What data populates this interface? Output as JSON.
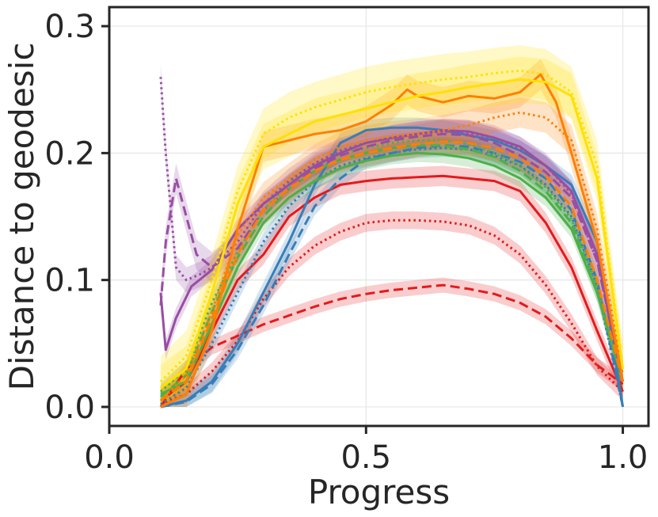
{
  "chart_data": {
    "type": "line",
    "title": "",
    "xlabel": "Progress",
    "ylabel": "Distance to geodesic",
    "xlim": [
      0.0,
      1.05
    ],
    "ylim": [
      -0.015,
      0.315
    ],
    "xticks": [
      {
        "value": 0.0,
        "label": "0.0"
      },
      {
        "value": 0.5,
        "label": "0.5"
      },
      {
        "value": 1.0,
        "label": "1.0"
      }
    ],
    "yticks": [
      {
        "value": 0.0,
        "label": "0.0"
      },
      {
        "value": 0.1,
        "label": "0.1"
      },
      {
        "value": 0.2,
        "label": "0.2"
      },
      {
        "value": 0.3,
        "label": "0.3"
      }
    ],
    "grid": true,
    "series": [
      {
        "name": "red-dashed",
        "color": "#e41a1c",
        "dash": "dashed",
        "band": 0.006,
        "x": [
          0.1,
          0.15,
          0.2,
          0.25,
          0.3,
          0.35,
          0.4,
          0.45,
          0.5,
          0.55,
          0.6,
          0.65,
          0.7,
          0.75,
          0.8,
          0.85,
          0.9,
          0.95,
          1.0
        ],
        "y": [
          0.0,
          0.03,
          0.047,
          0.056,
          0.065,
          0.072,
          0.079,
          0.085,
          0.089,
          0.092,
          0.094,
          0.096,
          0.093,
          0.089,
          0.082,
          0.071,
          0.054,
          0.033,
          0.018
        ]
      },
      {
        "name": "red-dotted",
        "color": "#e41a1c",
        "dash": "dotted",
        "band": 0.007,
        "x": [
          0.1,
          0.15,
          0.2,
          0.25,
          0.3,
          0.35,
          0.4,
          0.45,
          0.5,
          0.55,
          0.6,
          0.65,
          0.7,
          0.75,
          0.8,
          0.85,
          0.9,
          0.95,
          1.0
        ],
        "y": [
          0.002,
          0.01,
          0.028,
          0.052,
          0.085,
          0.11,
          0.127,
          0.138,
          0.145,
          0.147,
          0.147,
          0.146,
          0.143,
          0.135,
          0.12,
          0.096,
          0.066,
          0.032,
          0.012
        ]
      },
      {
        "name": "red-solid",
        "color": "#e41a1c",
        "dash": "solid",
        "band": 0.008,
        "x": [
          0.1,
          0.15,
          0.2,
          0.25,
          0.3,
          0.35,
          0.4,
          0.45,
          0.5,
          0.55,
          0.6,
          0.65,
          0.7,
          0.75,
          0.8,
          0.85,
          0.9,
          0.95,
          1.0
        ],
        "y": [
          0.005,
          0.02,
          0.06,
          0.1,
          0.12,
          0.15,
          0.165,
          0.175,
          0.178,
          0.18,
          0.181,
          0.182,
          0.18,
          0.178,
          0.17,
          0.145,
          0.11,
          0.06,
          0.012
        ]
      },
      {
        "name": "blue-solid",
        "color": "#377eb8",
        "dash": "solid",
        "band": 0.008,
        "x": [
          0.1,
          0.15,
          0.2,
          0.25,
          0.3,
          0.35,
          0.4,
          0.45,
          0.5,
          0.55,
          0.6,
          0.65,
          0.7,
          0.75,
          0.8,
          0.85,
          0.9,
          0.95,
          1.0
        ],
        "y": [
          0.0,
          0.005,
          0.02,
          0.05,
          0.09,
          0.13,
          0.175,
          0.208,
          0.218,
          0.22,
          0.22,
          0.218,
          0.214,
          0.21,
          0.202,
          0.19,
          0.175,
          0.13,
          0.0
        ]
      },
      {
        "name": "blue-dashed",
        "color": "#377eb8",
        "dash": "dashed",
        "band": 0.007,
        "x": [
          0.1,
          0.15,
          0.2,
          0.25,
          0.3,
          0.35,
          0.4,
          0.45,
          0.5,
          0.55,
          0.6,
          0.65,
          0.7,
          0.75,
          0.8,
          0.85,
          0.9,
          0.95,
          1.0
        ],
        "y": [
          0.0,
          0.004,
          0.018,
          0.045,
          0.08,
          0.12,
          0.158,
          0.18,
          0.195,
          0.2,
          0.204,
          0.206,
          0.205,
          0.2,
          0.193,
          0.18,
          0.155,
          0.1,
          0.0
        ]
      },
      {
        "name": "blue-dotted",
        "color": "#377eb8",
        "dash": "dotted",
        "band": 0.007,
        "x": [
          0.1,
          0.15,
          0.2,
          0.25,
          0.3,
          0.35,
          0.4,
          0.45,
          0.5,
          0.55,
          0.6,
          0.65,
          0.7,
          0.75,
          0.8,
          0.85,
          0.9,
          0.95,
          1.0
        ],
        "y": [
          0.002,
          0.015,
          0.05,
          0.09,
          0.13,
          0.158,
          0.178,
          0.19,
          0.196,
          0.2,
          0.203,
          0.204,
          0.203,
          0.198,
          0.19,
          0.175,
          0.15,
          0.095,
          0.0
        ]
      },
      {
        "name": "green-solid",
        "color": "#4daf4a",
        "dash": "solid",
        "band": 0.007,
        "x": [
          0.1,
          0.15,
          0.2,
          0.25,
          0.3,
          0.35,
          0.4,
          0.45,
          0.5,
          0.55,
          0.6,
          0.65,
          0.7,
          0.75,
          0.8,
          0.85,
          0.9,
          0.95,
          1.0
        ],
        "y": [
          0.01,
          0.02,
          0.065,
          0.11,
          0.145,
          0.165,
          0.178,
          0.188,
          0.194,
          0.198,
          0.2,
          0.199,
          0.196,
          0.19,
          0.18,
          0.165,
          0.14,
          0.09,
          0.02
        ]
      },
      {
        "name": "green-dashed",
        "color": "#4daf4a",
        "dash": "dashed",
        "band": 0.007,
        "x": [
          0.1,
          0.15,
          0.2,
          0.25,
          0.3,
          0.35,
          0.4,
          0.45,
          0.5,
          0.55,
          0.6,
          0.65,
          0.7,
          0.75,
          0.8,
          0.85,
          0.9,
          0.95,
          1.0
        ],
        "y": [
          0.008,
          0.025,
          0.075,
          0.118,
          0.15,
          0.172,
          0.186,
          0.195,
          0.2,
          0.204,
          0.206,
          0.206,
          0.203,
          0.197,
          0.186,
          0.17,
          0.145,
          0.09,
          0.02
        ]
      },
      {
        "name": "green-dotted",
        "color": "#4daf4a",
        "dash": "dotted",
        "band": 0.007,
        "x": [
          0.1,
          0.15,
          0.2,
          0.25,
          0.3,
          0.35,
          0.4,
          0.45,
          0.5,
          0.55,
          0.6,
          0.65,
          0.7,
          0.75,
          0.8,
          0.85,
          0.9,
          0.95,
          1.0
        ],
        "y": [
          0.012,
          0.03,
          0.082,
          0.122,
          0.155,
          0.176,
          0.19,
          0.199,
          0.204,
          0.208,
          0.21,
          0.21,
          0.207,
          0.2,
          0.19,
          0.173,
          0.148,
          0.095,
          0.022
        ]
      },
      {
        "name": "purple-solid",
        "color": "#984ea3",
        "dash": "solid",
        "band": 0.008,
        "x": [
          0.1,
          0.11,
          0.13,
          0.16,
          0.2,
          0.25,
          0.3,
          0.35,
          0.4,
          0.45,
          0.5,
          0.55,
          0.6,
          0.65,
          0.7,
          0.75,
          0.8,
          0.85,
          0.9,
          0.95,
          1.0
        ],
        "y": [
          0.09,
          0.045,
          0.07,
          0.095,
          0.108,
          0.14,
          0.16,
          0.175,
          0.19,
          0.2,
          0.208,
          0.212,
          0.215,
          0.218,
          0.217,
          0.212,
          0.205,
          0.19,
          0.17,
          0.12,
          0.02
        ]
      },
      {
        "name": "purple-dashed",
        "color": "#984ea3",
        "dash": "dashed",
        "band": 0.012,
        "x": [
          0.1,
          0.11,
          0.13,
          0.15,
          0.17,
          0.2,
          0.25,
          0.3,
          0.35,
          0.4,
          0.45,
          0.5,
          0.55,
          0.6,
          0.65,
          0.7,
          0.75,
          0.8,
          0.85,
          0.9,
          0.95,
          1.0
        ],
        "y": [
          0.08,
          0.13,
          0.18,
          0.15,
          0.12,
          0.11,
          0.125,
          0.155,
          0.172,
          0.188,
          0.198,
          0.205,
          0.21,
          0.213,
          0.215,
          0.214,
          0.208,
          0.198,
          0.185,
          0.165,
          0.115,
          0.02
        ]
      },
      {
        "name": "purple-dotted",
        "color": "#984ea3",
        "dash": "dotted",
        "band": 0.01,
        "x": [
          0.1,
          0.11,
          0.13,
          0.15,
          0.18,
          0.2,
          0.25,
          0.3,
          0.35,
          0.4,
          0.45,
          0.5,
          0.55,
          0.6,
          0.65,
          0.7,
          0.75,
          0.8,
          0.85,
          0.9,
          0.95,
          1.0
        ],
        "y": [
          0.26,
          0.2,
          0.11,
          0.1,
          0.105,
          0.11,
          0.13,
          0.16,
          0.178,
          0.192,
          0.202,
          0.208,
          0.212,
          0.215,
          0.217,
          0.216,
          0.212,
          0.203,
          0.19,
          0.168,
          0.115,
          0.02
        ]
      },
      {
        "name": "orange-solid",
        "color": "#ff7f00",
        "dash": "solid",
        "band": 0.012,
        "x": [
          0.1,
          0.15,
          0.2,
          0.25,
          0.3,
          0.35,
          0.4,
          0.45,
          0.5,
          0.55,
          0.58,
          0.6,
          0.65,
          0.7,
          0.75,
          0.8,
          0.84,
          0.87,
          0.9,
          0.95,
          1.0
        ],
        "y": [
          0.0,
          0.01,
          0.06,
          0.14,
          0.205,
          0.21,
          0.215,
          0.218,
          0.225,
          0.238,
          0.25,
          0.245,
          0.24,
          0.245,
          0.243,
          0.248,
          0.262,
          0.24,
          0.2,
          0.13,
          0.02
        ]
      },
      {
        "name": "orange-dotted",
        "color": "#ff7f00",
        "dash": "dotted",
        "band": 0.012,
        "x": [
          0.1,
          0.15,
          0.2,
          0.25,
          0.3,
          0.35,
          0.4,
          0.45,
          0.5,
          0.55,
          0.6,
          0.65,
          0.7,
          0.75,
          0.8,
          0.85,
          0.9,
          0.95,
          1.0
        ],
        "y": [
          0.005,
          0.025,
          0.075,
          0.135,
          0.165,
          0.18,
          0.195,
          0.205,
          0.21,
          0.213,
          0.215,
          0.218,
          0.222,
          0.228,
          0.232,
          0.228,
          0.21,
          0.14,
          0.025
        ]
      },
      {
        "name": "orange-dashed",
        "color": "#ff7f00",
        "dash": "dashed",
        "band": 0.01,
        "x": [
          0.1,
          0.15,
          0.2,
          0.25,
          0.3,
          0.35,
          0.4,
          0.45,
          0.5,
          0.55,
          0.6,
          0.65,
          0.7,
          0.75,
          0.8,
          0.85,
          0.9,
          0.95,
          1.0
        ],
        "y": [
          0.005,
          0.02,
          0.07,
          0.12,
          0.155,
          0.172,
          0.186,
          0.195,
          0.2,
          0.204,
          0.207,
          0.209,
          0.208,
          0.204,
          0.196,
          0.182,
          0.158,
          0.1,
          0.02
        ]
      },
      {
        "name": "yellow-solid",
        "color": "#ffe000",
        "dash": "solid",
        "band": 0.018,
        "x": [
          0.1,
          0.15,
          0.2,
          0.25,
          0.3,
          0.35,
          0.4,
          0.45,
          0.5,
          0.55,
          0.6,
          0.65,
          0.7,
          0.75,
          0.8,
          0.85,
          0.9,
          0.95,
          1.0
        ],
        "y": [
          0.015,
          0.03,
          0.09,
          0.16,
          0.205,
          0.215,
          0.225,
          0.23,
          0.235,
          0.24,
          0.245,
          0.248,
          0.252,
          0.255,
          0.258,
          0.256,
          0.245,
          0.18,
          0.03
        ]
      },
      {
        "name": "yellow-dotted",
        "color": "#ffe000",
        "dash": "dotted",
        "band": 0.02,
        "x": [
          0.1,
          0.15,
          0.2,
          0.25,
          0.3,
          0.35,
          0.4,
          0.45,
          0.5,
          0.55,
          0.6,
          0.65,
          0.7,
          0.75,
          0.8,
          0.85,
          0.9,
          0.95,
          1.0
        ],
        "y": [
          0.02,
          0.04,
          0.1,
          0.17,
          0.215,
          0.228,
          0.236,
          0.242,
          0.248,
          0.252,
          0.255,
          0.258,
          0.26,
          0.263,
          0.265,
          0.262,
          0.248,
          0.19,
          0.03
        ]
      }
    ]
  }
}
